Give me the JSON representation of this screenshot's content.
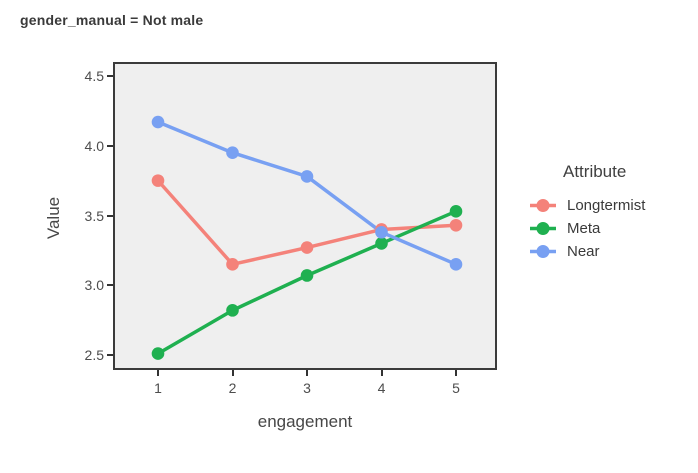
{
  "chart_data": {
    "type": "line",
    "title": "gender_manual = Not male",
    "xlabel": "engagement",
    "ylabel": "Value",
    "x": [
      1,
      2,
      3,
      4,
      5
    ],
    "xticks": [
      1,
      2,
      3,
      4,
      5
    ],
    "yticks": [
      2.5,
      3.0,
      3.5,
      4.0,
      4.5
    ],
    "ylim": [
      2.39,
      4.6
    ],
    "xlim": [
      0.7,
      5.3
    ],
    "grid": false,
    "panel_bg": "#efefef",
    "panel_border_color": "#3b3b3b",
    "legend": {
      "title": "Attribute",
      "position": "right"
    },
    "series": [
      {
        "name": "Longtermist",
        "color": "#f4827a",
        "values": [
          3.75,
          3.15,
          3.27,
          3.4,
          3.43
        ]
      },
      {
        "name": "Meta",
        "color": "#1fb050",
        "values": [
          2.51,
          2.82,
          3.07,
          3.3,
          3.53
        ]
      },
      {
        "name": "Near",
        "color": "#78a0f2",
        "values": [
          4.17,
          3.95,
          3.78,
          3.38,
          3.15
        ]
      }
    ]
  }
}
